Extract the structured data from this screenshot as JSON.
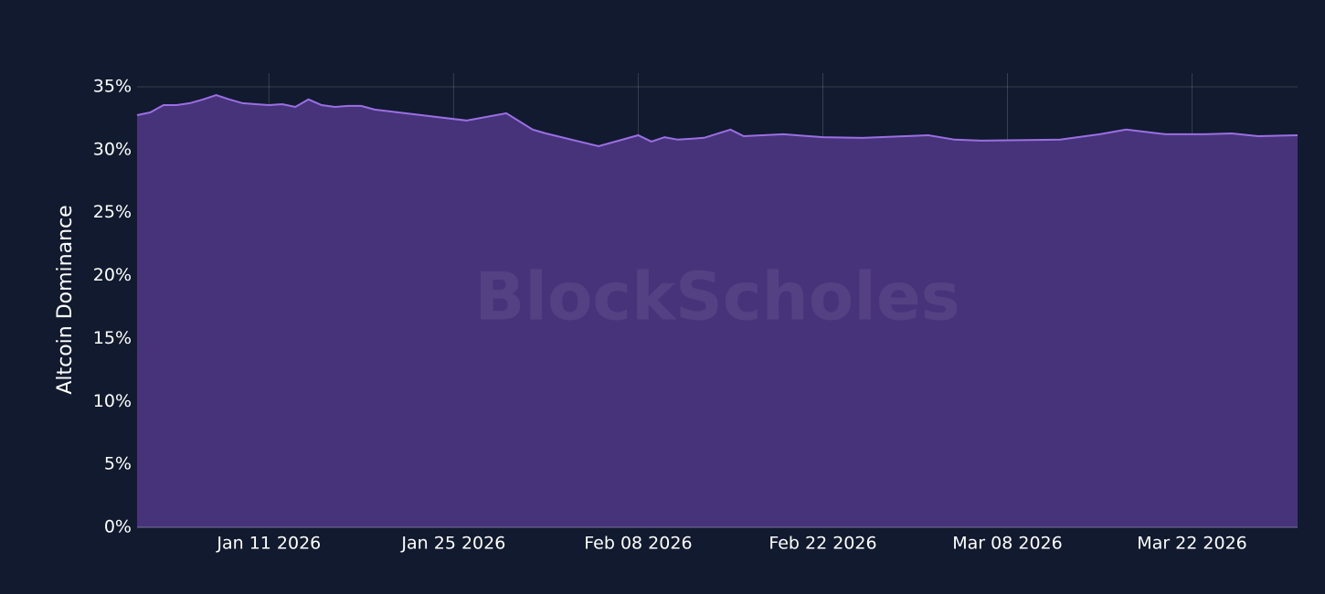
{
  "chart_data": {
    "type": "area",
    "y_label": "Altcoin Dominance",
    "watermark": "BlockScholes",
    "x": [
      "2026-01-01",
      "2026-01-02",
      "2026-01-03",
      "2026-01-04",
      "2026-01-05",
      "2026-01-06",
      "2026-01-07",
      "2026-01-08",
      "2026-01-09",
      "2026-01-10",
      "2026-01-11",
      "2026-01-12",
      "2026-01-13",
      "2026-01-14",
      "2026-01-15",
      "2026-01-16",
      "2026-01-17",
      "2026-01-18",
      "2026-01-19",
      "2026-01-26",
      "2026-01-29",
      "2026-01-31",
      "2026-02-01",
      "2026-02-05",
      "2026-02-08",
      "2026-02-09",
      "2026-02-10",
      "2026-02-11",
      "2026-02-13",
      "2026-02-15",
      "2026-02-16",
      "2026-02-19",
      "2026-02-22",
      "2026-02-25",
      "2026-03-02",
      "2026-03-04",
      "2026-03-06",
      "2026-03-12",
      "2026-03-15",
      "2026-03-17",
      "2026-03-20",
      "2026-03-23",
      "2026-03-25",
      "2026-03-27",
      "2026-03-30"
    ],
    "series": [
      {
        "color": "#9b6fe3",
        "fill": "#47337a",
        "values": [
          32.75,
          32.97,
          33.55,
          33.55,
          33.7,
          34.0,
          34.35,
          34.0,
          33.7,
          33.62,
          33.55,
          33.62,
          33.4,
          34.0,
          33.55,
          33.4,
          33.48,
          33.48,
          33.19,
          32.32,
          32.9,
          31.6,
          31.3,
          30.28,
          31.15,
          30.65,
          31.0,
          30.8,
          30.95,
          31.6,
          31.08,
          31.23,
          31.0,
          30.94,
          31.15,
          30.8,
          30.72,
          30.8,
          31.23,
          31.6,
          31.23,
          31.23,
          31.3,
          31.08,
          31.15
        ]
      }
    ],
    "xlim": [
      "2026-01-01",
      "2026-03-30"
    ],
    "xticks": [
      {
        "value": "2026-01-11",
        "label": "Jan 11 2026"
      },
      {
        "value": "2026-01-25",
        "label": "Jan 25 2026"
      },
      {
        "value": "2026-02-08",
        "label": "Feb 08 2026"
      },
      {
        "value": "2026-02-22",
        "label": "Feb 22 2026"
      },
      {
        "value": "2026-03-08",
        "label": "Mar 08 2026"
      },
      {
        "value": "2026-03-22",
        "label": "Mar 22 2026"
      }
    ],
    "ylim": [
      0,
      35
    ],
    "yticks": [
      {
        "value": 0,
        "label": "0%"
      },
      {
        "value": 5,
        "label": "5%"
      },
      {
        "value": 10,
        "label": "10%"
      },
      {
        "value": 15,
        "label": "15%"
      },
      {
        "value": 20,
        "label": "20%"
      },
      {
        "value": 25,
        "label": "25%"
      },
      {
        "value": 30,
        "label": "30%"
      },
      {
        "value": 35,
        "label": "35%"
      }
    ],
    "grid": true
  }
}
